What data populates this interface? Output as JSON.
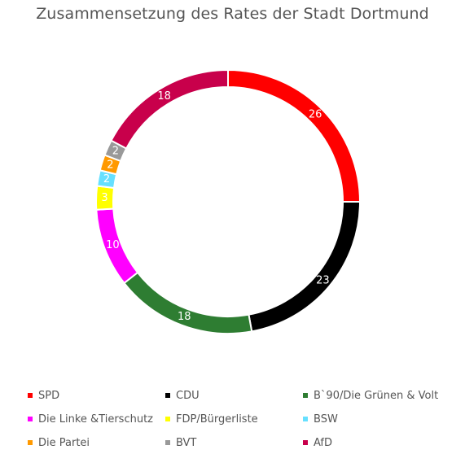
{
  "chart_data": {
    "type": "pie",
    "title": "Zusammensetzung des Rates der Stadt Dortmund",
    "categories": [
      "SPD",
      "CDU",
      "B`90/Die Grünen & Volt",
      "Die Linke &Tierschutz",
      "FDP/Bürgerliste",
      "BSW",
      "Die Partei",
      "BVT",
      "AfD"
    ],
    "values": [
      26,
      23,
      18,
      10,
      3,
      2,
      2,
      2,
      18
    ],
    "colors": [
      "#ff0000",
      "#000000",
      "#2e7d32",
      "#ff00ff",
      "#ffff00",
      "#66e0ff",
      "#ff9900",
      "#999999",
      "#c8004b"
    ],
    "label_colors": [
      "#ffffff",
      "#ffffff",
      "#ffffff",
      "#ffffff",
      "#ffffff",
      "#ffffff",
      "#ffffff",
      "#ffffff",
      "#ffffff"
    ],
    "style": "donut",
    "legend_position": "bottom"
  }
}
